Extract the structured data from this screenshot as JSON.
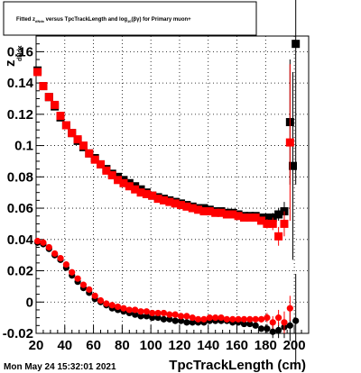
{
  "title": {
    "parts": [
      {
        "text": "Fitted  z",
        "size": "main"
      },
      {
        "text": "dNdx",
        "size": "sub"
      },
      {
        "text": "  versus TpcTrackLength and log",
        "size": "main"
      },
      {
        "text": "10",
        "size": "sub"
      },
      {
        "text": "(βγ) for Primary muon+",
        "size": "main"
      }
    ]
  },
  "footer": {
    "timestamp": "Mon May 24 15:32:01 2021"
  },
  "chart_data": {
    "type": "scatter",
    "xlabel": "TpcTrackLength (cm)",
    "ylabel": "z",
    "ylabel_sub": "dNdx",
    "xlim": [
      20,
      210
    ],
    "ylim": [
      -0.02,
      0.17
    ],
    "grid": true,
    "x_ticks": [
      20,
      40,
      60,
      80,
      100,
      120,
      140,
      160,
      180,
      200
    ],
    "y_ticks": [
      -0.02,
      0,
      0.02,
      0.04,
      0.06,
      0.08,
      0.1,
      0.12,
      0.14,
      0.16
    ],
    "y_tick_labels": [
      "-0.02",
      "0",
      "0.02",
      "0.04",
      "0.06",
      "0.08",
      "0.1",
      "0.12",
      "0.14",
      "0.16"
    ],
    "series": [
      {
        "color": "#000000",
        "marker": "square",
        "x": [
          21,
          25,
          29,
          33,
          37,
          41,
          45,
          49,
          53,
          57,
          61,
          65,
          69,
          73,
          77,
          81,
          85,
          89,
          93,
          97,
          101,
          105,
          109,
          113,
          117,
          121,
          125,
          129,
          133,
          137,
          141,
          145,
          149,
          153,
          157,
          161,
          165,
          169,
          173,
          177,
          181,
          185,
          189,
          193,
          197,
          199,
          201,
          203,
          207
        ],
        "y": [
          0.148,
          0.138,
          0.131,
          0.125,
          0.118,
          0.113,
          0.108,
          0.103,
          0.099,
          0.095,
          0.092,
          0.088,
          0.085,
          0.082,
          0.08,
          0.078,
          0.076,
          0.074,
          0.072,
          0.07,
          0.068,
          0.067,
          0.066,
          0.065,
          0.064,
          0.063,
          0.062,
          0.061,
          0.06,
          0.06,
          0.059,
          0.058,
          0.058,
          0.057,
          0.057,
          0.056,
          0.055,
          0.055,
          0.055,
          0.054,
          0.054,
          0.054,
          0.056,
          0.058,
          0.115,
          0.087,
          0.165,
          null,
          null
        ],
        "yerr": [
          0.002,
          0.002,
          0.002,
          0.002,
          0.002,
          0.001,
          0.001,
          0.001,
          0.001,
          0.001,
          0.001,
          0.001,
          0.001,
          0.001,
          0.001,
          0.001,
          0.001,
          0.001,
          0.001,
          0.001,
          0.001,
          0.001,
          0.001,
          0.001,
          0.001,
          0.001,
          0.001,
          0.001,
          0.001,
          0.001,
          0.001,
          0.001,
          0.001,
          0.001,
          0.001,
          0.001,
          0.001,
          0.001,
          0.001,
          0.001,
          0.002,
          0.003,
          0.004,
          0.006,
          0.04,
          0.06,
          0.09,
          null,
          null
        ]
      },
      {
        "color": "#ff0000",
        "marker": "square",
        "x": [
          21,
          25,
          29,
          33,
          37,
          41,
          45,
          49,
          53,
          57,
          61,
          65,
          69,
          73,
          77,
          81,
          85,
          89,
          93,
          97,
          101,
          105,
          109,
          113,
          117,
          121,
          125,
          129,
          133,
          137,
          141,
          145,
          149,
          153,
          157,
          161,
          165,
          169,
          173,
          177,
          181,
          185,
          189,
          193,
          197
        ],
        "y": [
          0.147,
          0.138,
          0.131,
          0.126,
          0.119,
          0.113,
          0.108,
          0.104,
          0.1,
          0.095,
          0.091,
          0.088,
          0.084,
          0.081,
          0.078,
          0.076,
          0.074,
          0.072,
          0.07,
          0.069,
          0.068,
          0.066,
          0.065,
          0.064,
          0.063,
          0.062,
          0.061,
          0.06,
          0.059,
          0.058,
          0.058,
          0.057,
          0.057,
          0.056,
          0.056,
          0.055,
          0.054,
          0.054,
          0.054,
          0.052,
          0.05,
          0.05,
          0.042,
          0.05,
          0.102
        ],
        "yerr": [
          0.002,
          0.002,
          0.002,
          0.002,
          0.002,
          0.001,
          0.001,
          0.001,
          0.001,
          0.001,
          0.001,
          0.001,
          0.001,
          0.001,
          0.001,
          0.001,
          0.001,
          0.001,
          0.001,
          0.001,
          0.001,
          0.001,
          0.001,
          0.001,
          0.001,
          0.001,
          0.001,
          0.001,
          0.001,
          0.001,
          0.001,
          0.001,
          0.001,
          0.001,
          0.001,
          0.001,
          0.001,
          0.001,
          0.001,
          0.002,
          0.003,
          0.004,
          0.006,
          0.008,
          0.05
        ]
      },
      {
        "color": "#000000",
        "marker": "circle",
        "x": [
          21,
          25,
          29,
          33,
          37,
          41,
          45,
          49,
          53,
          57,
          61,
          65,
          69,
          73,
          77,
          81,
          85,
          89,
          93,
          97,
          101,
          105,
          109,
          113,
          117,
          121,
          125,
          129,
          133,
          137,
          141,
          145,
          149,
          153,
          157,
          161,
          165,
          169,
          173,
          177,
          181,
          185,
          189,
          193,
          197,
          201
        ],
        "y": [
          0.038,
          0.037,
          0.034,
          0.03,
          0.027,
          0.022,
          0.017,
          0.013,
          0.009,
          0.006,
          0.002,
          0.0,
          -0.002,
          -0.004,
          -0.005,
          -0.006,
          -0.007,
          -0.008,
          -0.009,
          -0.009,
          -0.01,
          -0.01,
          -0.011,
          -0.011,
          -0.012,
          -0.012,
          -0.013,
          -0.013,
          -0.013,
          -0.013,
          -0.012,
          -0.012,
          -0.012,
          -0.012,
          -0.013,
          -0.013,
          -0.014,
          -0.014,
          -0.015,
          -0.017,
          -0.017,
          -0.019,
          -0.018,
          -0.016,
          -0.015,
          -0.012
        ],
        "yerr": [
          0.002,
          0.002,
          0.002,
          0.002,
          0.001,
          0.001,
          0.001,
          0.001,
          0.001,
          0.001,
          0.001,
          0.001,
          0.001,
          0.001,
          0.001,
          0.001,
          0.001,
          0.001,
          0.001,
          0.001,
          0.001,
          0.001,
          0.001,
          0.001,
          0.001,
          0.001,
          0.001,
          0.001,
          0.001,
          0.001,
          0.001,
          0.001,
          0.001,
          0.001,
          0.001,
          0.001,
          0.001,
          0.001,
          0.001,
          0.002,
          0.003,
          0.004,
          0.005,
          0.007,
          0.01,
          0.03
        ]
      },
      {
        "color": "#ff0000",
        "marker": "circle",
        "x": [
          21,
          25,
          29,
          33,
          37,
          41,
          45,
          49,
          53,
          57,
          61,
          65,
          69,
          73,
          77,
          81,
          85,
          89,
          93,
          97,
          101,
          105,
          109,
          113,
          117,
          121,
          125,
          129,
          133,
          137,
          141,
          145,
          149,
          153,
          157,
          161,
          165,
          169,
          173,
          177,
          181,
          185,
          189,
          193,
          197
        ],
        "y": [
          0.039,
          0.038,
          0.035,
          0.031,
          0.028,
          0.024,
          0.019,
          0.015,
          0.011,
          0.008,
          0.004,
          0.001,
          -0.001,
          -0.002,
          -0.003,
          -0.004,
          -0.005,
          -0.005,
          -0.006,
          -0.006,
          -0.007,
          -0.007,
          -0.007,
          -0.008,
          -0.008,
          -0.009,
          -0.009,
          -0.01,
          -0.011,
          -0.011,
          -0.01,
          -0.01,
          -0.01,
          -0.011,
          -0.011,
          -0.011,
          -0.011,
          -0.011,
          -0.011,
          -0.011,
          -0.01,
          -0.013,
          -0.01,
          -0.013,
          -0.004
        ],
        "yerr": [
          0.002,
          0.002,
          0.002,
          0.002,
          0.001,
          0.001,
          0.001,
          0.001,
          0.001,
          0.001,
          0.001,
          0.001,
          0.001,
          0.001,
          0.001,
          0.001,
          0.001,
          0.001,
          0.001,
          0.001,
          0.001,
          0.001,
          0.001,
          0.001,
          0.001,
          0.001,
          0.001,
          0.001,
          0.001,
          0.001,
          0.001,
          0.001,
          0.001,
          0.001,
          0.001,
          0.001,
          0.001,
          0.001,
          0.001,
          0.002,
          0.003,
          0.004,
          0.005,
          0.007,
          0.008
        ]
      }
    ]
  }
}
